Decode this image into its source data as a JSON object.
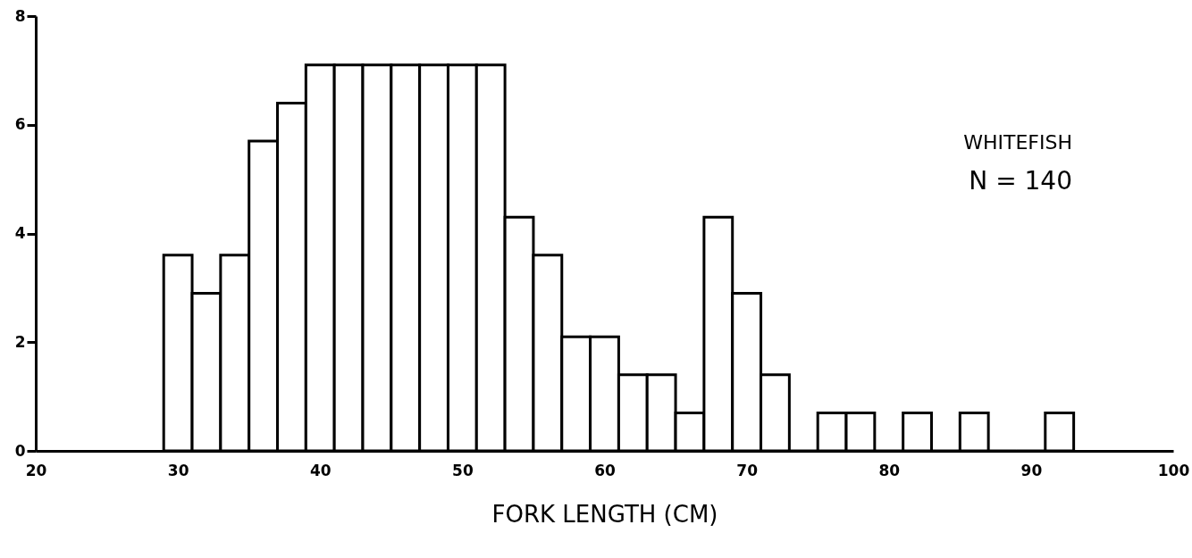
{
  "chart_data": {
    "type": "histogram",
    "xlabel": "FORK LENGTH (CM)",
    "annotations": [
      "WHITEFISH",
      "N = 140"
    ],
    "bins": [
      29,
      31,
      33,
      35,
      37,
      39,
      41,
      43,
      45,
      47,
      49,
      51,
      53,
      55,
      57,
      59,
      61,
      63,
      65,
      67,
      69,
      71,
      73,
      75,
      77,
      79,
      81,
      83,
      85,
      87,
      89,
      91,
      93
    ],
    "values": [
      3.6,
      2.9,
      3.6,
      5.7,
      6.4,
      7.1,
      7.1,
      7.1,
      7.1,
      7.1,
      7.1,
      7.1,
      4.3,
      3.6,
      2.1,
      2.1,
      1.4,
      1.4,
      0.7,
      4.3,
      2.9,
      1.4,
      0,
      0.7,
      0.7,
      0,
      0.7,
      0,
      0.7,
      0,
      0,
      0.7
    ],
    "color": "#ffffff",
    "xlim": [
      20,
      100
    ],
    "xticks": [
      20,
      30,
      40,
      50,
      60,
      70,
      80,
      90,
      100
    ],
    "ylim": [
      0,
      8
    ],
    "yticks": [
      0,
      2,
      4,
      6,
      8
    ],
    "grid": false
  }
}
